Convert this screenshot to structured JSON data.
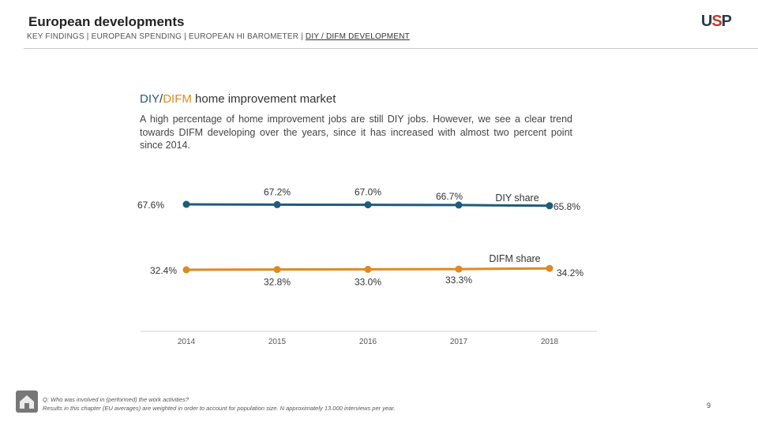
{
  "header": {
    "title": "European developments",
    "logo": {
      "part1": "U",
      "part2": "S",
      "part3": "P"
    },
    "breadcrumb": [
      "KEY FINDINGS",
      "EUROPEAN SPENDING",
      "EUROPEAN HI BAROMETER",
      "DIY / DIFM DEVELOPMENT"
    ],
    "breadcrumb_separator": "|"
  },
  "section": {
    "heading_diy": "DIY",
    "heading_slash": "/",
    "heading_difm": "DIFM",
    "heading_rest": " home improvement market",
    "description": "A high percentage of home improvement jobs are still DIY jobs. However, we see a clear trend towards DIFM developing over the years, since it has increased with almost two percent point since 2014."
  },
  "chart_data": {
    "type": "line",
    "categories": [
      "2014",
      "2015",
      "2016",
      "2017",
      "2018"
    ],
    "series": [
      {
        "name": "DIY share",
        "values": [
          67.6,
          67.2,
          67.0,
          66.7,
          65.8
        ],
        "labels": [
          "67.6%",
          "67.2%",
          "67.0%",
          "66.7%",
          "65.8%"
        ],
        "color": "#1f5b7a"
      },
      {
        "name": "DIFM share",
        "values": [
          32.4,
          32.8,
          33.0,
          33.3,
          34.2
        ],
        "labels": [
          "32.4%",
          "32.8%",
          "33.0%",
          "33.3%",
          "34.2%"
        ],
        "color": "#e08a1e"
      }
    ],
    "xlabel": "",
    "ylabel": ""
  },
  "footer": {
    "question": "Q: Who was involved in (performed) the work activities?",
    "note": "Results in this chapter (EU averages) are weighted in order to account for population size. N approximately 13.000 interviews per year.",
    "page_number": "9",
    "icon": "house-icon"
  }
}
